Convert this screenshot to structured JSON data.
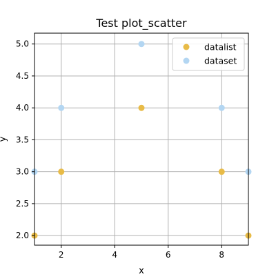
{
  "chart_data": {
    "type": "scatter",
    "title": "Test plot_scatter",
    "xlabel": "x",
    "ylabel": "y",
    "xlim": [
      1,
      9
    ],
    "ylim": [
      1.85,
      5.17
    ],
    "xticks": [
      2,
      4,
      6,
      8
    ],
    "xtick_labels": [
      "2",
      "4",
      "6",
      "8"
    ],
    "yticks": [
      2.0,
      2.5,
      3.0,
      3.5,
      4.0,
      4.5,
      5.0
    ],
    "ytick_labels": [
      "2.0",
      "2.5",
      "3.0",
      "3.5",
      "4.0",
      "4.5",
      "5.0"
    ],
    "grid": true,
    "legend_position": "top-right",
    "series": [
      {
        "name": "datalist",
        "color": "#e8bb47",
        "points": [
          {
            "x": 1,
            "y": 2
          },
          {
            "x": 2,
            "y": 3
          },
          {
            "x": 5,
            "y": 4
          },
          {
            "x": 8,
            "y": 3
          },
          {
            "x": 9,
            "y": 2
          }
        ]
      },
      {
        "name": "dataset",
        "color": "#b3d6f2",
        "points": [
          {
            "x": 1,
            "y": 3
          },
          {
            "x": 2,
            "y": 4
          },
          {
            "x": 5,
            "y": 5
          },
          {
            "x": 8,
            "y": 4
          },
          {
            "x": 9,
            "y": 3
          }
        ]
      }
    ]
  }
}
